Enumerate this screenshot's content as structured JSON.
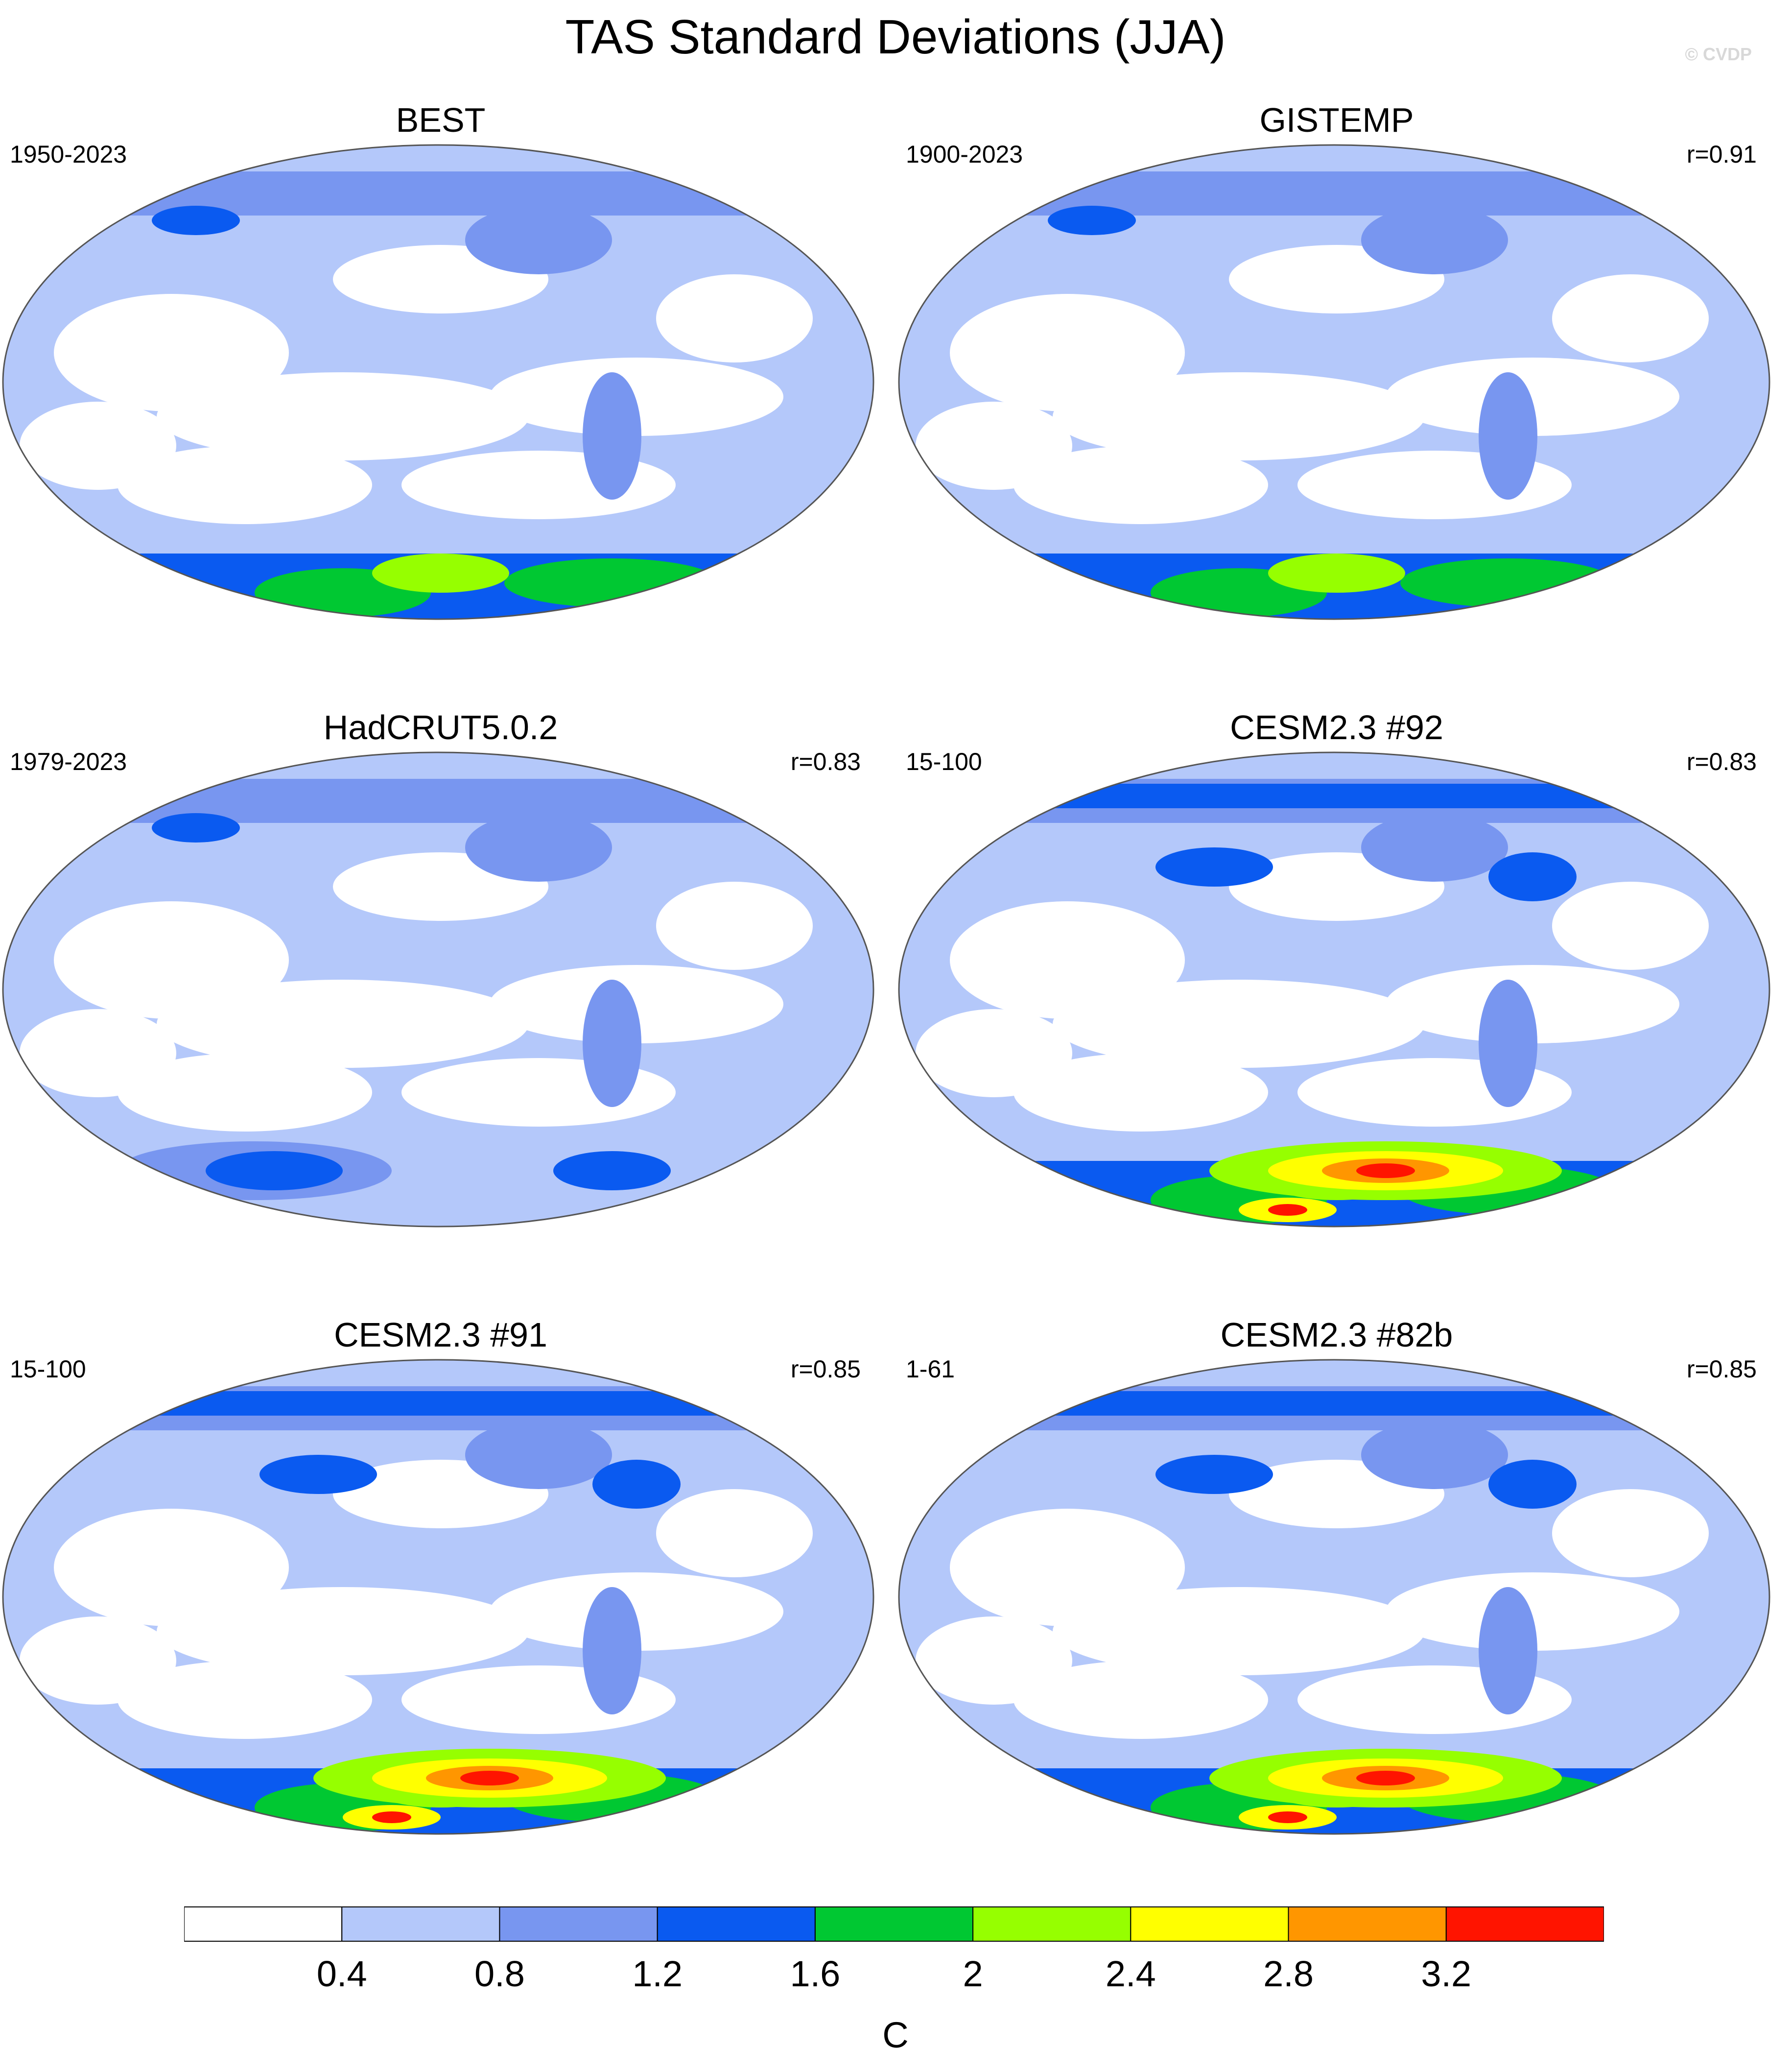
{
  "title": "TAS Standard Deviations (JJA)",
  "watermark": "© CVDP",
  "panels": [
    {
      "title": "BEST",
      "period": "1950-2023",
      "corr": ""
    },
    {
      "title": "GISTEMP",
      "period": "1900-2023",
      "corr": "r=0.91"
    },
    {
      "title": "HadCRUT5.0.2",
      "period": "1979-2023",
      "corr": "r=0.83"
    },
    {
      "title": "CESM2.3 #92",
      "period": "15-100",
      "corr": "r=0.83"
    },
    {
      "title": "CESM2.3 #91",
      "period": "15-100",
      "corr": "r=0.85"
    },
    {
      "title": "CESM2.3 #82b",
      "period": "1-61",
      "corr": "r=0.85"
    }
  ],
  "colorbar": {
    "unit": "C",
    "ticks": [
      "0.4",
      "0.8",
      "1.2",
      "1.6",
      "2",
      "2.4",
      "2.8",
      "3.2"
    ],
    "colors": [
      "#ffffff",
      "#b4c8fa",
      "#7896f0",
      "#0a5af0",
      "#00c832",
      "#96ff00",
      "#ffff00",
      "#ff9600",
      "#ff1400"
    ]
  }
}
